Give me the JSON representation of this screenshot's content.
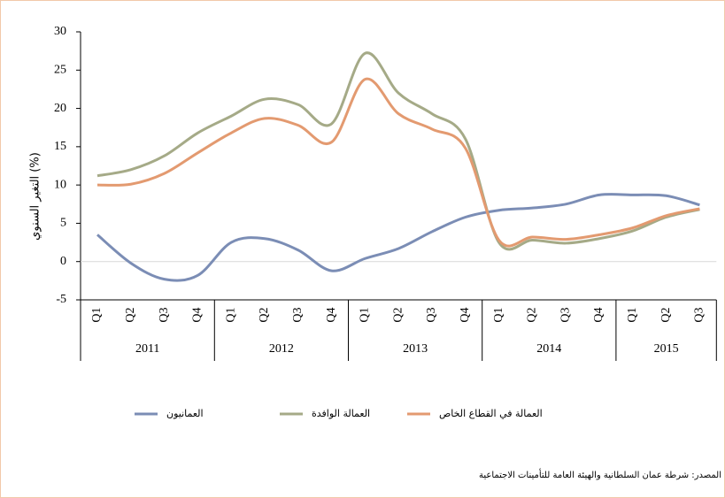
{
  "chart_data": {
    "type": "line",
    "y_label": "التغير السنوي (%)",
    "source": "المصدر: شرطة عمان السلطانية والهيئة العامة للتأمينات الاجتماعية",
    "categories": [
      "Q1",
      "Q2",
      "Q3",
      "Q4",
      "Q1",
      "Q2",
      "Q3",
      "Q4",
      "Q1",
      "Q2",
      "Q3",
      "Q4",
      "Q1",
      "Q2",
      "Q3",
      "Q4",
      "Q1",
      "Q2",
      "Q3"
    ],
    "groups": [
      {
        "label": "2011",
        "count": 4
      },
      {
        "label": "2012",
        "count": 4
      },
      {
        "label": "2013",
        "count": 4
      },
      {
        "label": "2014",
        "count": 4
      },
      {
        "label": "2015",
        "count": 3
      }
    ],
    "series": [
      {
        "name": "العمانيون",
        "color": "#7b8db5",
        "values": [
          3.5,
          -0.2,
          -2.3,
          -1.8,
          2.5,
          3.0,
          1.5,
          -1.2,
          0.4,
          1.7,
          3.9,
          5.8,
          6.7,
          7.0,
          7.5,
          8.7,
          8.7,
          8.6,
          7.4
        ]
      },
      {
        "name": "العمالة الوافدة",
        "color": "#a5aa87",
        "values": [
          11.2,
          12.0,
          13.8,
          16.8,
          19.0,
          21.2,
          20.5,
          18.0,
          27.2,
          22.0,
          19.3,
          16.0,
          2.5,
          2.8,
          2.4,
          3.0,
          4.0,
          5.8,
          6.8
        ]
      },
      {
        "name": "العمالة في القطاع الخاص",
        "color": "#e39a70",
        "values": [
          10.0,
          10.1,
          11.5,
          14.2,
          16.8,
          18.7,
          17.8,
          15.6,
          23.8,
          19.3,
          17.3,
          14.8,
          2.8,
          3.2,
          2.9,
          3.5,
          4.4,
          6.0,
          6.9
        ]
      }
    ],
    "ylim": [
      -5,
      30
    ],
    "yticks": [
      -5,
      0,
      5,
      10,
      15,
      20,
      25,
      30
    ],
    "grid": false
  }
}
